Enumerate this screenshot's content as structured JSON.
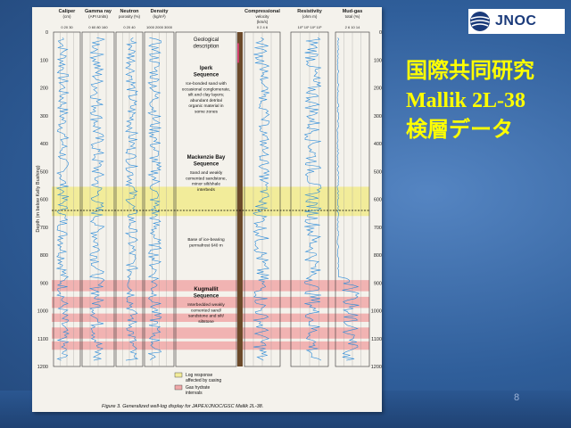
{
  "logo": {
    "text": "JNOC"
  },
  "title_lines": [
    "国際共同研究",
    "Mallik 2L-38",
    "検層データ"
  ],
  "page_number": "8",
  "figure": {
    "caption": "Figure 3. Generalized well-log display for JAPEX/JNOC/GSC Mallik 2L-38.",
    "depth_axis_label": "Depth (m below Kelly Bushing)",
    "depth_ticks": [
      "0",
      "100",
      "200",
      "300",
      "400",
      "500",
      "600",
      "700",
      "800",
      "900",
      "1000",
      "1100",
      "1200"
    ],
    "tracks": [
      {
        "name": "Caliper",
        "unit": "(cm)",
        "scale": "0  20  30"
      },
      {
        "name": "Gamma ray",
        "unit": "(API Units)",
        "scale": "0   60  80  160"
      },
      {
        "name": "Neutron",
        "unit": "porosity (%)",
        "scale": "0    20  40"
      },
      {
        "name": "Density",
        "unit": "(kg/m³)",
        "scale": "1000 2000 3000"
      },
      {
        "name": "Compressional",
        "unit": "velocity",
        "extra": "(km/s)",
        "scale": "0   2   4   6"
      },
      {
        "name": "Resistivity",
        "unit": "(ohm m)",
        "scale": "10⁰ 10¹ 10² 10³"
      },
      {
        "name": "Mud-gas",
        "unit": "total (%)",
        "scale": "2  6  10  14"
      }
    ],
    "geo_header": [
      "Geological",
      "description"
    ],
    "sequences": [
      {
        "name": [
          "Iperk",
          "Sequence"
        ],
        "desc": [
          "Ice-bonded sand with",
          "occasional conglomerate,",
          "silt and clay layers;",
          "abundant detrital",
          "organic material in",
          "some zones"
        ]
      },
      {
        "name": [
          "Mackenzie Bay",
          "Sequence"
        ],
        "desc": [
          "Sand and weakly",
          "cemented sandstone,",
          "minor silt/shale",
          "interbeds"
        ]
      },
      {
        "name": [
          "Kugmallit",
          "Sequence"
        ],
        "desc": [
          "Interbedded weakly",
          "cemented sand/",
          "sandstone and silt/",
          "siltstone"
        ]
      }
    ],
    "permafrost_note": [
      "Base of ice-bearing",
      "permafrost 640 m"
    ],
    "legend": [
      {
        "label": [
          "Log response",
          "affected by casing"
        ],
        "color": "#f2ec9a"
      },
      {
        "label": [
          "Gas hydrate",
          "intervals"
        ],
        "color": "#f0a8a8"
      }
    ]
  },
  "colors": {
    "log_trace": "#2a8ad8",
    "casing_zone": "#f2ec9a",
    "hydrate_zone": "#f0a8a8",
    "title_text": "#ffff00"
  }
}
